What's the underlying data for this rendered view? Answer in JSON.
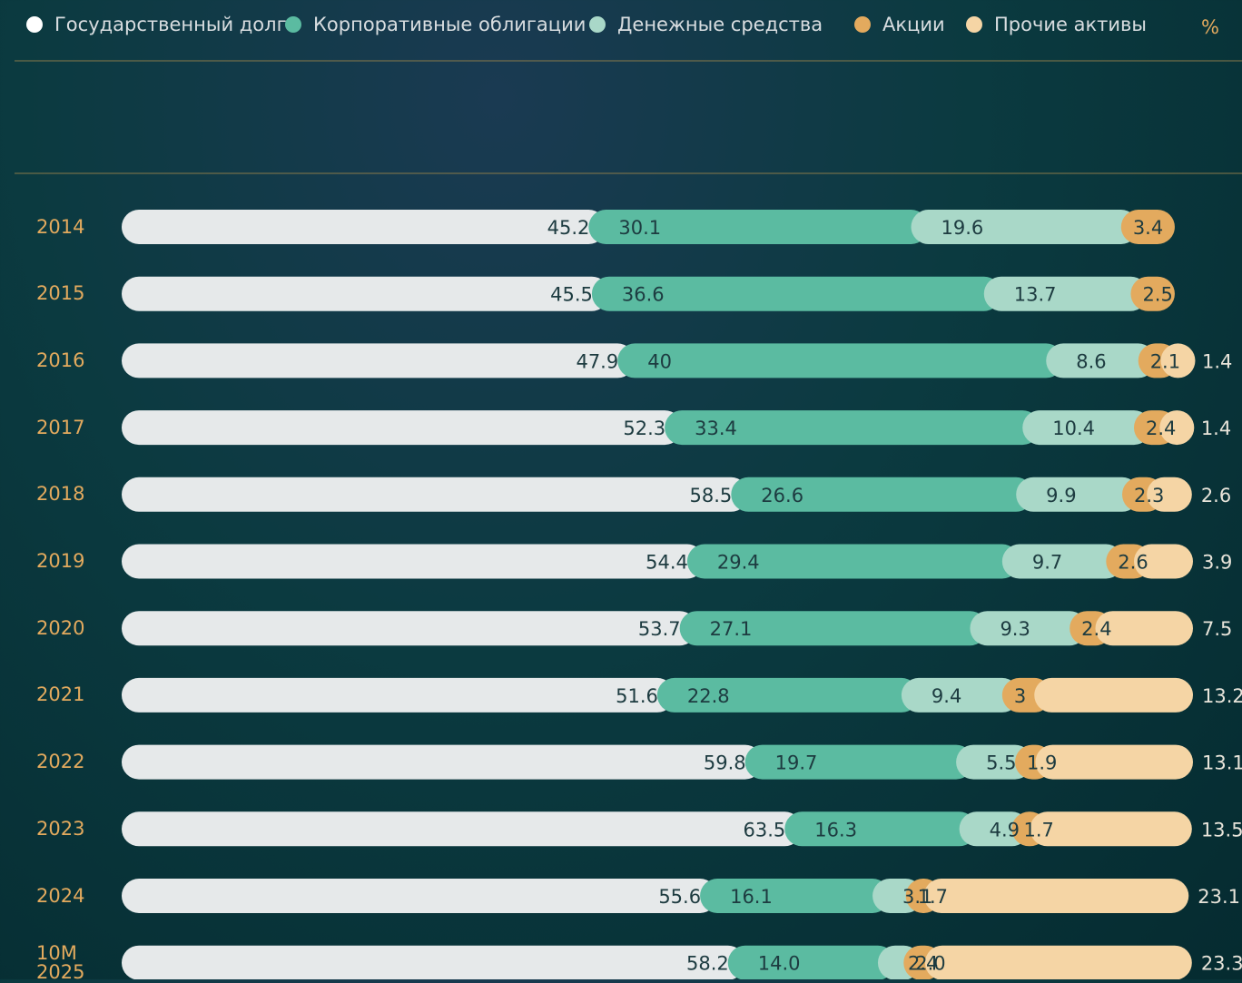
{
  "chart_data": {
    "type": "stacked-bar-horizontal",
    "unit": "%",
    "categories": [
      "2014",
      "2015",
      "2016",
      "2017",
      "2018",
      "2019",
      "2020",
      "2021",
      "2022",
      "2023",
      "2024",
      "10M 2025"
    ],
    "series": [
      {
        "name": "Государственный долг",
        "color": "#e6e9ea",
        "values": [
          45.2,
          45.5,
          47.9,
          52.3,
          58.5,
          54.4,
          53.7,
          51.6,
          59.8,
          63.5,
          55.6,
          58.2
        ]
      },
      {
        "name": "Корпоративные облигации",
        "color": "#5bbba1",
        "values": [
          30.1,
          36.6,
          40,
          33.4,
          26.6,
          29.4,
          27.1,
          22.8,
          19.7,
          16.3,
          16.1,
          14.0
        ],
        "value_labels": [
          "30.1",
          "36.6",
          "40",
          "33.4",
          "26.6",
          "29.4",
          "27.1",
          "22.8",
          "19.7",
          "16.3",
          "16.1",
          "14.0"
        ]
      },
      {
        "name": "Денежные средства",
        "color": "#a9d8c8",
        "values": [
          19.6,
          13.7,
          8.6,
          10.4,
          9.9,
          9.7,
          9.3,
          9.4,
          5.5,
          4.9,
          3.1,
          2.4
        ]
      },
      {
        "name": "Акции",
        "color": "#e3aa5e",
        "values": [
          3.4,
          2.5,
          2.1,
          2.4,
          2.3,
          2.6,
          2.4,
          3,
          1.9,
          1.7,
          1.7,
          2.0
        ],
        "value_labels": [
          "3.4",
          "2.5",
          "2.1",
          "2.4",
          "2.3",
          "2.6",
          "2.4",
          "3",
          "1.9",
          "1.7",
          "1.7",
          "2.0"
        ]
      },
      {
        "name": "Прочие активы",
        "color": "#f5d5a5",
        "values": [
          null,
          null,
          1.4,
          1.4,
          2.6,
          3.9,
          7.5,
          13.2,
          13.1,
          13.5,
          23.1,
          23.3
        ]
      }
    ]
  }
}
